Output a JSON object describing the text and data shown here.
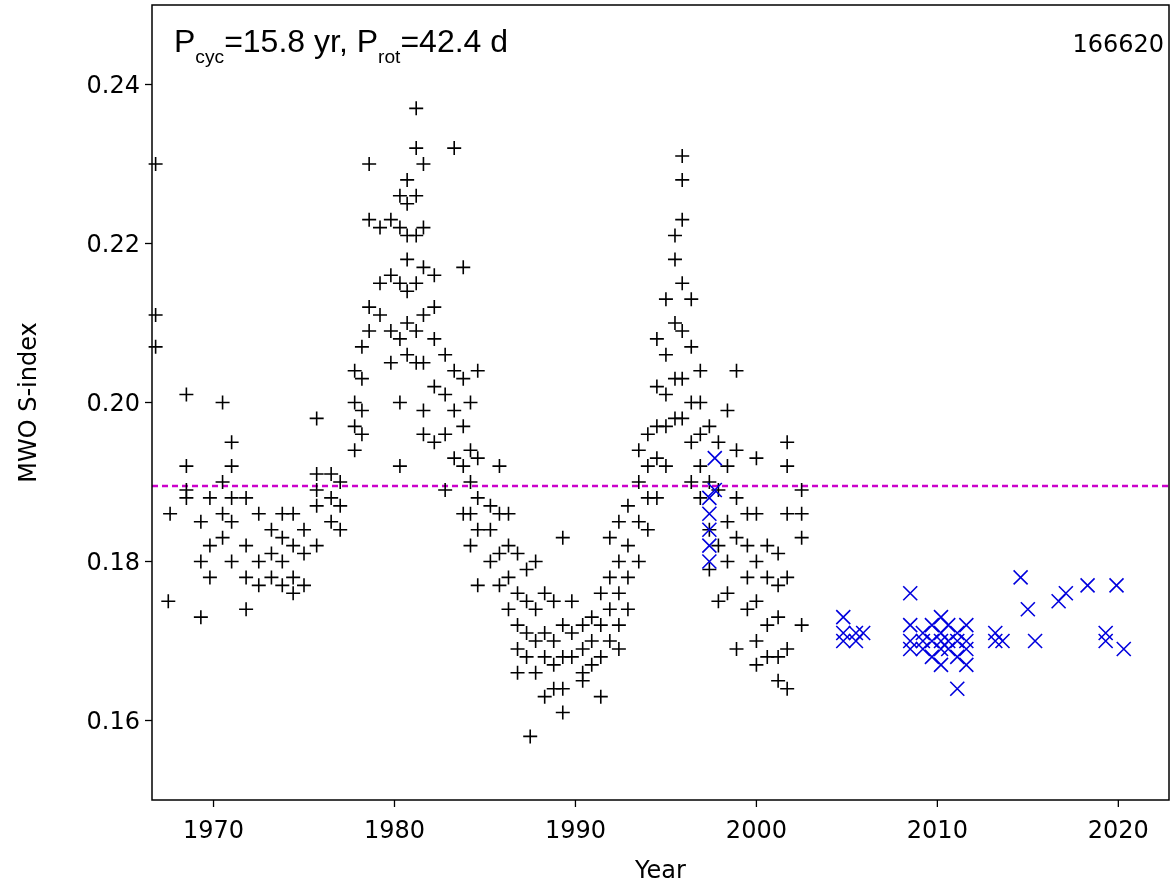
{
  "chart_data": {
    "type": "scatter",
    "xlabel": "Year",
    "ylabel": "MWO S-index",
    "annotations": [
      "P$_{cyc}$=15.8 yr, P$_{rot}$=42.4 d",
      "166620"
    ],
    "xlim": [
      1966.6,
      2022.8
    ],
    "ylim": [
      0.15,
      0.25
    ],
    "xticks": [
      1970,
      1980,
      1990,
      2000,
      2010,
      2020
    ],
    "yticks": [
      {
        "value": 0.16,
        "label": "0.16"
      },
      {
        "value": 0.18,
        "label": "0.18"
      },
      {
        "value": 0.2,
        "label": "0.20"
      },
      {
        "value": 0.22,
        "label": "0.22"
      },
      {
        "value": 0.24,
        "label": "0.24"
      }
    ],
    "grid": false,
    "ref_lines": [
      {
        "axis": "y",
        "value": 0.1895,
        "color": "#cc00cc",
        "line_style": "dashed"
      }
    ],
    "series": [
      {
        "color": "#000000",
        "marker": "plus",
        "x": [
          1966.8,
          1966.8,
          1966.8,
          1967.6,
          1967.5,
          1968.5,
          1968.5,
          1968.5,
          1968.5,
          1969.3,
          1969.3,
          1969.3,
          1969.8,
          1969.8,
          1969.8,
          1970.5,
          1970.5,
          1970.5,
          1970.5,
          1971,
          1971,
          1971,
          1971,
          1971,
          1971.8,
          1971.8,
          1971.8,
          1971.8,
          1972.5,
          1972.5,
          1972.5,
          1973.2,
          1973.2,
          1973.2,
          1973.8,
          1973.8,
          1973.8,
          1973.8,
          1974.4,
          1974.4,
          1974.4,
          1974.4,
          1975,
          1975,
          1975,
          1975.7,
          1975.7,
          1975.7,
          1975.7,
          1975.7,
          1976.5,
          1976.5,
          1976.5,
          1977,
          1977,
          1977,
          1977.8,
          1977.8,
          1977.8,
          1977.8,
          1978.2,
          1978.2,
          1978.2,
          1978.2,
          1978.6,
          1978.6,
          1978.6,
          1978.6,
          1979.2,
          1979.2,
          1979.2,
          1979.8,
          1979.8,
          1979.8,
          1979.8,
          1980.3,
          1980.3,
          1980.3,
          1980.3,
          1980.3,
          1980.3,
          1980.7,
          1980.7,
          1980.7,
          1980.7,
          1980.7,
          1980.7,
          1980.7,
          1981.2,
          1981.2,
          1981.2,
          1981.2,
          1981.2,
          1981.2,
          1981.2,
          1981.6,
          1981.6,
          1981.6,
          1981.6,
          1981.6,
          1981.6,
          1981.6,
          1982.2,
          1982.2,
          1982.2,
          1982.2,
          1982.2,
          1982.8,
          1982.8,
          1982.8,
          1982.8,
          1983.3,
          1983.3,
          1983.3,
          1983.3,
          1983.8,
          1983.8,
          1983.8,
          1983.8,
          1983.8,
          1984.2,
          1984.2,
          1984.2,
          1984.2,
          1984.2,
          1984.6,
          1984.6,
          1984.6,
          1984.6,
          1984.6,
          1985.3,
          1985.3,
          1985.3,
          1985.8,
          1985.8,
          1985.8,
          1985.8,
          1986.3,
          1986.3,
          1986.3,
          1986.3,
          1986.8,
          1986.8,
          1986.8,
          1986.8,
          1986.8,
          1987.3,
          1987.3,
          1987.3,
          1987.3,
          1987.5,
          1987.8,
          1987.8,
          1987.8,
          1987.8,
          1988.3,
          1988.3,
          1988.3,
          1988.3,
          1988.8,
          1988.8,
          1988.8,
          1988.8,
          1989.3,
          1989.3,
          1989.3,
          1989.3,
          1989.3,
          1989.8,
          1989.8,
          1989.8,
          1990.4,
          1990.4,
          1990.4,
          1990.4,
          1990.9,
          1990.9,
          1990.9,
          1991.4,
          1991.4,
          1991.4,
          1991.4,
          1991.9,
          1991.9,
          1991.9,
          1991.9,
          1992.4,
          1992.4,
          1992.4,
          1992.4,
          1992.4,
          1992.9,
          1992.9,
          1992.9,
          1992.9,
          1993.5,
          1993.5,
          1993.5,
          1993.5,
          1994,
          1994,
          1994,
          1994,
          1994.5,
          1994.5,
          1994.5,
          1994.5,
          1994.5,
          1995,
          1995,
          1995,
          1995,
          1995,
          1995.5,
          1995.5,
          1995.5,
          1995.5,
          1995.5,
          1995.9,
          1995.9,
          1995.9,
          1995.9,
          1995.9,
          1995.9,
          1995.9,
          1996.4,
          1996.4,
          1996.4,
          1996.4,
          1996.4,
          1996.9,
          1996.9,
          1996.9,
          1996.9,
          1996.9,
          1997.4,
          1997.4,
          1997.4,
          1997.4,
          1997.9,
          1997.9,
          1997.9,
          1997.9,
          1998.4,
          1998.4,
          1998.4,
          1998.4,
          1998.4,
          1998.9,
          1998.9,
          1998.9,
          1998.9,
          1998.9,
          1999.5,
          1999.5,
          1999.5,
          1999.5,
          2000,
          2000,
          2000,
          2000,
          2000,
          2000,
          2000.6,
          2000.6,
          2000.6,
          2000.6,
          2001.2,
          2001.2,
          2001.2,
          2001.2,
          2001.2,
          2001.7,
          2001.7,
          2001.7,
          2001.7,
          2001.7,
          2001.7,
          2002.5,
          2002.5,
          2002.5,
          2002.5
        ],
        "values": [
          0.23,
          0.211,
          0.207,
          0.186,
          0.175,
          0.201,
          0.192,
          0.189,
          0.188,
          0.173,
          0.18,
          0.185,
          0.188,
          0.182,
          0.178,
          0.2,
          0.19,
          0.186,
          0.183,
          0.195,
          0.192,
          0.188,
          0.185,
          0.18,
          0.188,
          0.182,
          0.178,
          0.174,
          0.186,
          0.18,
          0.177,
          0.184,
          0.181,
          0.178,
          0.186,
          0.183,
          0.18,
          0.177,
          0.186,
          0.182,
          0.178,
          0.176,
          0.184,
          0.181,
          0.177,
          0.198,
          0.191,
          0.189,
          0.187,
          0.182,
          0.191,
          0.188,
          0.185,
          0.19,
          0.187,
          0.184,
          0.204,
          0.2,
          0.197,
          0.194,
          0.207,
          0.203,
          0.199,
          0.196,
          0.23,
          0.223,
          0.212,
          0.209,
          0.222,
          0.215,
          0.211,
          0.223,
          0.216,
          0.209,
          0.205,
          0.226,
          0.222,
          0.215,
          0.208,
          0.2,
          0.192,
          0.228,
          0.225,
          0.221,
          0.218,
          0.214,
          0.21,
          0.206,
          0.237,
          0.232,
          0.226,
          0.221,
          0.215,
          0.209,
          0.205,
          0.23,
          0.222,
          0.217,
          0.211,
          0.205,
          0.199,
          0.196,
          0.216,
          0.212,
          0.208,
          0.202,
          0.195,
          0.206,
          0.201,
          0.196,
          0.189,
          0.232,
          0.204,
          0.199,
          0.193,
          0.217,
          0.203,
          0.197,
          0.192,
          0.186,
          0.2,
          0.194,
          0.19,
          0.186,
          0.182,
          0.204,
          0.193,
          0.188,
          0.184,
          0.177,
          0.187,
          0.184,
          0.18,
          0.192,
          0.186,
          0.181,
          0.177,
          0.186,
          0.182,
          0.178,
          0.174,
          0.181,
          0.176,
          0.172,
          0.169,
          0.166,
          0.179,
          0.175,
          0.171,
          0.168,
          0.158,
          0.18,
          0.174,
          0.17,
          0.166,
          0.176,
          0.171,
          0.168,
          0.163,
          0.175,
          0.17,
          0.167,
          0.164,
          0.183,
          0.172,
          0.168,
          0.164,
          0.161,
          0.175,
          0.171,
          0.168,
          0.172,
          0.169,
          0.166,
          0.165,
          0.173,
          0.17,
          0.167,
          0.176,
          0.172,
          0.168,
          0.163,
          0.183,
          0.178,
          0.174,
          0.17,
          0.185,
          0.18,
          0.176,
          0.172,
          0.169,
          0.187,
          0.182,
          0.178,
          0.174,
          0.194,
          0.19,
          0.185,
          0.18,
          0.196,
          0.192,
          0.188,
          0.184,
          0.208,
          0.202,
          0.197,
          0.193,
          0.188,
          0.213,
          0.206,
          0.201,
          0.197,
          0.192,
          0.221,
          0.218,
          0.21,
          0.203,
          0.198,
          0.231,
          0.228,
          0.223,
          0.215,
          0.209,
          0.203,
          0.198,
          0.213,
          0.207,
          0.2,
          0.195,
          0.19,
          0.204,
          0.2,
          0.196,
          0.192,
          0.188,
          0.197,
          0.19,
          0.184,
          0.179,
          0.195,
          0.189,
          0.182,
          0.175,
          0.199,
          0.192,
          0.185,
          0.18,
          0.176,
          0.204,
          0.194,
          0.188,
          0.183,
          0.169,
          0.186,
          0.182,
          0.178,
          0.174,
          0.193,
          0.186,
          0.18,
          0.175,
          0.17,
          0.167,
          0.182,
          0.178,
          0.172,
          0.168,
          0.181,
          0.177,
          0.173,
          0.168,
          0.165,
          0.195,
          0.192,
          0.186,
          0.178,
          0.169,
          0.164,
          0.189,
          0.186,
          0.183,
          0.172
        ]
      },
      {
        "color": "#0000dd",
        "marker": "cross",
        "x": [
          1997.4,
          1997.4,
          1997.4,
          1997.4,
          1997.4,
          1997.7,
          1997.7,
          2004.8,
          2004.8,
          2004.8,
          2005.5,
          2005.5,
          2005.9,
          2008.5,
          2008.5,
          2008.5,
          2008.5,
          2009.2,
          2009.2,
          2009.2,
          2009.7,
          2009.7,
          2009.7,
          2010.2,
          2010.2,
          2010.2,
          2010.2,
          2010.2,
          2010.6,
          2010.6,
          2010.6,
          2011.1,
          2011.1,
          2011.1,
          2011.1,
          2011.6,
          2011.6,
          2011.6,
          2011.6,
          2013.2,
          2013.2,
          2013.6,
          2014.6,
          2015,
          2015.4,
          2016.7,
          2017.1,
          2018.3,
          2019.3,
          2019.3,
          2019.9,
          2020.3
        ],
        "values": [
          0.188,
          0.186,
          0.184,
          0.182,
          0.18,
          0.193,
          0.189,
          0.173,
          0.171,
          0.17,
          0.171,
          0.17,
          0.171,
          0.176,
          0.172,
          0.17,
          0.169,
          0.171,
          0.17,
          0.169,
          0.172,
          0.17,
          0.168,
          0.173,
          0.171,
          0.17,
          0.169,
          0.167,
          0.172,
          0.17,
          0.169,
          0.171,
          0.17,
          0.168,
          0.164,
          0.172,
          0.17,
          0.169,
          0.167,
          0.17,
          0.171,
          0.17,
          0.178,
          0.174,
          0.17,
          0.175,
          0.176,
          0.177,
          0.171,
          0.17,
          0.177,
          0.169
        ]
      }
    ]
  }
}
